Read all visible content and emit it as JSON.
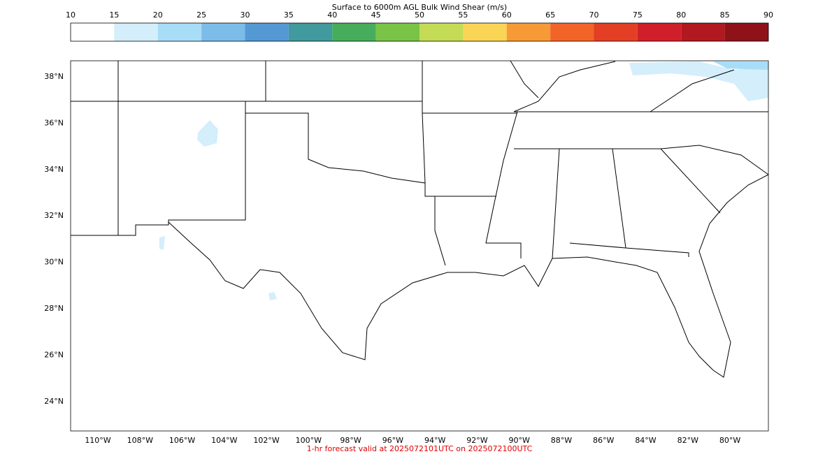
{
  "colorbar": {
    "title": "Surface to 6000m AGL Bulk Wind Shear (m/s)",
    "ticks": [
      10,
      15,
      20,
      25,
      30,
      35,
      40,
      45,
      50,
      55,
      60,
      65,
      70,
      75,
      80,
      85,
      90
    ],
    "colors": [
      "#ffffff",
      "#d4eefb",
      "#a8ddf7",
      "#7bbde8",
      "#5599d4",
      "#419a9e",
      "#46ad5c",
      "#79c346",
      "#c4db55",
      "#fad454",
      "#f69a36",
      "#f26327",
      "#e33f25",
      "#d01f2a",
      "#b11820",
      "#8f1219"
    ]
  },
  "map": {
    "lat_labels": [
      "38°N",
      "36°N",
      "34°N",
      "32°N",
      "30°N",
      "28°N",
      "26°N",
      "24°N"
    ],
    "lon_labels": [
      "110°W",
      "108°W",
      "106°W",
      "104°W",
      "102°W",
      "100°W",
      "98°W",
      "96°W",
      "94°W",
      "92°W",
      "90°W",
      "88°W",
      "86°W",
      "84°W",
      "82°W",
      "80°W"
    ]
  },
  "footer": "1-hr forecast valid at 2025072101UTC on 2025072100UTC"
}
